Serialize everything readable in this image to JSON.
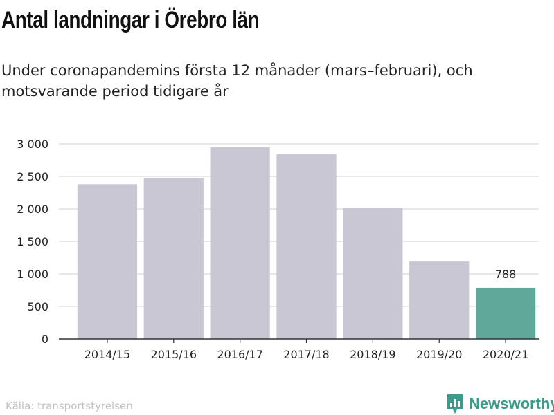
{
  "header": {
    "title": "Antal landningar i Örebro län",
    "subtitle": "Under coronapandemins första 12 månader (mars–februari), och motsvarande period tidigare år"
  },
  "footer": {
    "source": "Källa: transportstyrelsen",
    "brand": "Newsworthy",
    "brand_icon": "bar-chart-speech-bubble-icon"
  },
  "colors": {
    "bar": "#c9c7d3",
    "highlight": "#5fa89a",
    "brand": "#3d9b8c",
    "grid": "#e1e1e1",
    "axis": "#333333"
  },
  "chart_data": {
    "type": "bar",
    "categories": [
      "2014/15",
      "2015/16",
      "2016/17",
      "2017/18",
      "2018/19",
      "2019/20",
      "2020/21"
    ],
    "values": [
      2380,
      2470,
      2950,
      2840,
      2020,
      1190,
      788
    ],
    "highlight_index": 6,
    "data_labels": [
      {
        "index": 6,
        "text": "788"
      }
    ],
    "ylim": [
      0,
      3000
    ],
    "yticks": [
      0,
      500,
      1000,
      1500,
      2000,
      2500,
      3000
    ],
    "ytick_labels": [
      "0",
      "500",
      "1 000",
      "1 500",
      "2 000",
      "2 500",
      "3 000"
    ],
    "grid": true,
    "xlabel": "",
    "ylabel": ""
  }
}
